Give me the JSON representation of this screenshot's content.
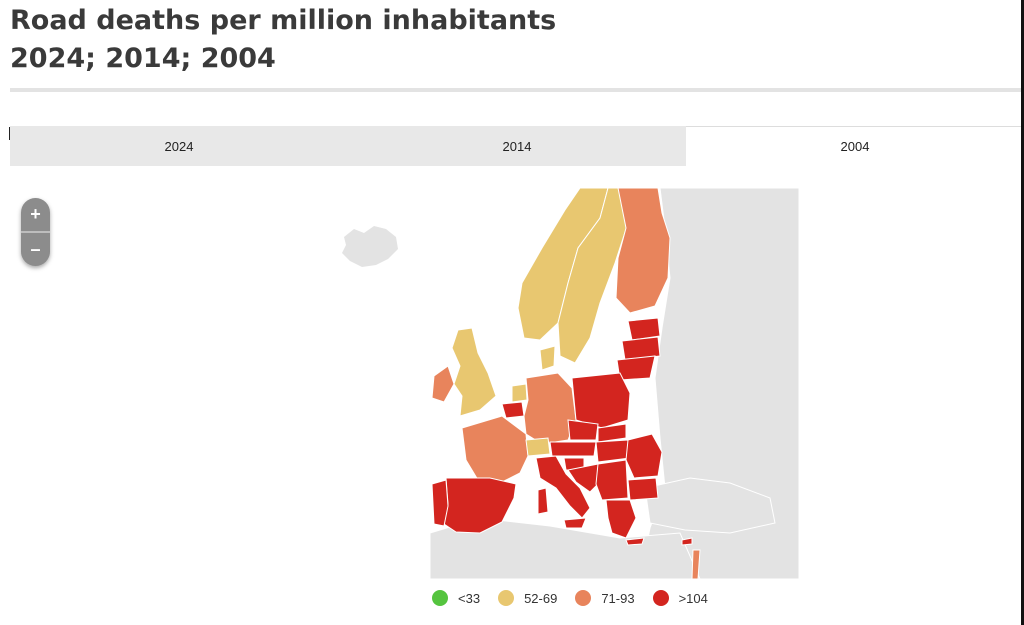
{
  "header": {
    "title_line1": "Road deaths per million inhabitants",
    "title_line2": "2024; 2014; 2004"
  },
  "tabs": [
    {
      "label": "2024",
      "active": false
    },
    {
      "label": "2014",
      "active": false
    },
    {
      "label": "2004",
      "active": true
    }
  ],
  "zoom": {
    "in_label": "+",
    "out_label": "–"
  },
  "colors": {
    "lt33": "#55c43f",
    "b52_69": "#e8c770",
    "b71_93": "#e8845c",
    "gt104": "#d3251f",
    "land": "#e3e3e3"
  },
  "legend": [
    {
      "label": "<33",
      "color": "#55c43f"
    },
    {
      "label": "52-69",
      "color": "#e8c770"
    },
    {
      "label": "71-93",
      "color": "#e8845c"
    },
    {
      "label": ">104",
      "color": "#d3251f"
    }
  ]
}
